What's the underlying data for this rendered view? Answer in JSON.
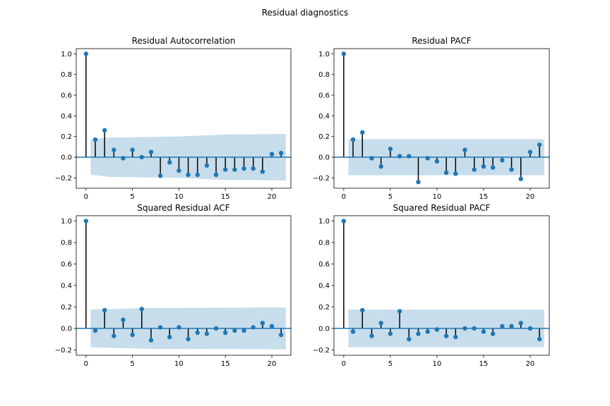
{
  "figure": {
    "suptitle": "Residual diagnostics"
  },
  "colors": {
    "stem": "#000000",
    "marker": "#1f77b4",
    "baseline": "#1f77b4",
    "band": "#1f77b4"
  },
  "chart_data": [
    {
      "type": "scatter",
      "subtype": "stem",
      "title": "Residual Autocorrelation",
      "xlabel": "",
      "ylabel": "",
      "xlim": [
        -1.05,
        22.05
      ],
      "ylim": [
        -0.3,
        1.05
      ],
      "xticks": [
        0,
        5,
        10,
        15,
        20
      ],
      "yticks": [
        -0.2,
        0.0,
        0.2,
        0.4,
        0.6,
        0.8,
        1.0
      ],
      "xtick_labels": [
        "0",
        "5",
        "10",
        "15",
        "20"
      ],
      "ytick_labels": [
        "−0.2",
        "0.0",
        "0.2",
        "0.4",
        "0.6",
        "0.8",
        "1.0"
      ],
      "grid": false,
      "x": [
        0,
        1,
        2,
        3,
        4,
        5,
        6,
        7,
        8,
        9,
        10,
        11,
        12,
        13,
        14,
        15,
        16,
        17,
        18,
        19,
        20,
        21
      ],
      "values": [
        1.0,
        0.17,
        0.26,
        0.07,
        -0.01,
        0.07,
        0.0,
        0.05,
        -0.18,
        -0.05,
        -0.13,
        -0.17,
        -0.17,
        -0.08,
        -0.17,
        -0.12,
        -0.12,
        -0.11,
        -0.11,
        -0.14,
        0.03,
        0.04
      ],
      "confint": {
        "x": [
          0.5,
          2.5,
          10,
          15,
          21.5
        ],
        "upper": [
          0.17,
          0.19,
          0.2,
          0.22,
          0.225
        ],
        "lower": [
          -0.17,
          -0.19,
          -0.2,
          -0.22,
          -0.225
        ]
      }
    },
    {
      "type": "scatter",
      "subtype": "stem",
      "title": "Residual PACF",
      "xlabel": "",
      "ylabel": "",
      "xlim": [
        -1.05,
        22.05
      ],
      "ylim": [
        -0.3,
        1.05
      ],
      "xticks": [
        0,
        5,
        10,
        15,
        20
      ],
      "yticks": [
        -0.2,
        0.0,
        0.2,
        0.4,
        0.6,
        0.8,
        1.0
      ],
      "xtick_labels": [
        "0",
        "5",
        "10",
        "15",
        "20"
      ],
      "ytick_labels": [
        "−0.2",
        "0.0",
        "0.2",
        "0.4",
        "0.6",
        "0.8",
        "1.0"
      ],
      "grid": false,
      "x": [
        0,
        1,
        2,
        3,
        4,
        5,
        6,
        7,
        8,
        9,
        10,
        11,
        12,
        13,
        14,
        15,
        16,
        17,
        18,
        19,
        20,
        21
      ],
      "values": [
        1.0,
        0.17,
        0.24,
        -0.01,
        -0.09,
        0.08,
        0.01,
        0.01,
        -0.24,
        -0.01,
        -0.04,
        -0.15,
        -0.16,
        0.07,
        -0.12,
        -0.09,
        -0.1,
        -0.03,
        -0.12,
        -0.21,
        0.05,
        0.12
      ],
      "confint": {
        "x": [
          0.5,
          21.5
        ],
        "upper": [
          0.175,
          0.175
        ],
        "lower": [
          -0.175,
          -0.175
        ]
      }
    },
    {
      "type": "scatter",
      "subtype": "stem",
      "title": "Squared Residual ACF",
      "xlabel": "",
      "ylabel": "",
      "xlim": [
        -1.05,
        22.05
      ],
      "ylim": [
        -0.25,
        1.05
      ],
      "xticks": [
        0,
        5,
        10,
        15,
        20
      ],
      "yticks": [
        -0.2,
        0.0,
        0.2,
        0.4,
        0.6,
        0.8,
        1.0
      ],
      "xtick_labels": [
        "0",
        "5",
        "10",
        "15",
        "20"
      ],
      "ytick_labels": [
        "−0.2",
        "0.0",
        "0.2",
        "0.4",
        "0.6",
        "0.8",
        "1.0"
      ],
      "grid": false,
      "x": [
        0,
        1,
        2,
        3,
        4,
        5,
        6,
        7,
        8,
        9,
        10,
        11,
        12,
        13,
        14,
        15,
        16,
        17,
        18,
        19,
        20,
        21
      ],
      "values": [
        1.0,
        -0.02,
        0.17,
        -0.07,
        0.08,
        -0.06,
        0.18,
        -0.11,
        0.01,
        -0.08,
        0.01,
        -0.1,
        -0.04,
        -0.05,
        0.0,
        -0.04,
        -0.02,
        -0.02,
        0.01,
        0.05,
        0.02,
        -0.06
      ],
      "confint": {
        "x": [
          0.5,
          6.5,
          21.5
        ],
        "upper": [
          0.175,
          0.19,
          0.195
        ],
        "lower": [
          -0.175,
          -0.19,
          -0.195
        ]
      }
    },
    {
      "type": "scatter",
      "subtype": "stem",
      "title": "Squared Residual PACF",
      "xlabel": "",
      "ylabel": "",
      "xlim": [
        -1.05,
        22.05
      ],
      "ylim": [
        -0.25,
        1.05
      ],
      "xticks": [
        0,
        5,
        10,
        15,
        20
      ],
      "yticks": [
        -0.2,
        0.0,
        0.2,
        0.4,
        0.6,
        0.8,
        1.0
      ],
      "xtick_labels": [
        "0",
        "5",
        "10",
        "15",
        "20"
      ],
      "ytick_labels": [
        "−0.2",
        "0.0",
        "0.2",
        "0.4",
        "0.6",
        "0.8",
        "1.0"
      ],
      "grid": false,
      "x": [
        0,
        1,
        2,
        3,
        4,
        5,
        6,
        7,
        8,
        9,
        10,
        11,
        12,
        13,
        14,
        15,
        16,
        17,
        18,
        19,
        20,
        21
      ],
      "values": [
        1.0,
        -0.03,
        0.17,
        -0.07,
        0.05,
        -0.05,
        0.16,
        -0.1,
        -0.05,
        -0.03,
        -0.01,
        -0.07,
        -0.08,
        0.0,
        0.0,
        -0.03,
        -0.05,
        0.02,
        0.02,
        0.05,
        0.0,
        -0.1
      ],
      "confint": {
        "x": [
          0.5,
          21.5
        ],
        "upper": [
          0.175,
          0.175
        ],
        "lower": [
          -0.175,
          -0.175
        ]
      }
    }
  ]
}
